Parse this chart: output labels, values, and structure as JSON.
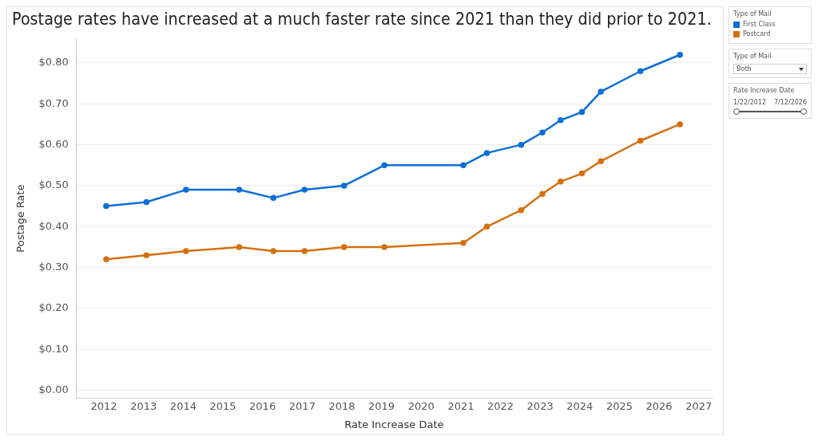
{
  "chart_data": {
    "type": "line",
    "title": "Postage rates have increased at a much faster rate since 2021 than they did prior to 2021.",
    "xlabel": "Rate Increase Date",
    "ylabel": "Postage Rate",
    "legend_title": "Type of Mail",
    "x": [
      "2012-01-22",
      "2013-01-27",
      "2014-01-26",
      "2015-05-31",
      "2016-04-10",
      "2017-01-22",
      "2018-01-21",
      "2019-01-27",
      "2021-01-24",
      "2021-08-29",
      "2022-07-10",
      "2023-01-22",
      "2023-07-09",
      "2024-01-21",
      "2024-07-14",
      "2025-07-13",
      "2026-07-12"
    ],
    "series": [
      {
        "name": "First Class",
        "color": "#0b6fd6",
        "values": [
          0.45,
          0.46,
          0.49,
          0.49,
          0.47,
          0.49,
          0.5,
          0.55,
          0.55,
          0.58,
          0.6,
          0.63,
          0.66,
          0.68,
          0.73,
          0.78,
          0.82
        ]
      },
      {
        "name": "Postcard",
        "color": "#d4700f",
        "values": [
          0.32,
          0.33,
          0.34,
          0.35,
          0.34,
          0.34,
          0.35,
          0.35,
          0.36,
          0.4,
          0.44,
          0.48,
          0.51,
          0.53,
          0.56,
          0.61,
          0.65
        ]
      }
    ],
    "xlim": [
      "2011-04-24",
      "2027-05-01"
    ],
    "xticks": [
      "2012",
      "2013",
      "2014",
      "2015",
      "2016",
      "2017",
      "2018",
      "2019",
      "2020",
      "2021",
      "2022",
      "2023",
      "2024",
      "2025",
      "2026",
      "2027"
    ],
    "ylim": [
      -0.02,
      0.86
    ],
    "yticks": [
      {
        "value": 0,
        "label": "$0.00"
      },
      {
        "value": 0.1,
        "label": "$0.10"
      },
      {
        "value": 0.2,
        "label": "$0.20"
      },
      {
        "value": 0.3,
        "label": "$0.30"
      },
      {
        "value": 0.4,
        "label": "$0.40"
      },
      {
        "value": 0.5,
        "label": "$0.50"
      },
      {
        "value": 0.6,
        "label": "$0.60"
      },
      {
        "value": 0.7,
        "label": "$0.70"
      },
      {
        "value": 0.8,
        "label": "$0.80"
      }
    ],
    "grid": "y",
    "legend": "right",
    "marker": "circle",
    "line_style": "solid",
    "annotations": [
      "Type of Mail",
      "Both",
      "Rate Increase Date",
      "1/22/2012",
      "7/12/2026"
    ]
  }
}
